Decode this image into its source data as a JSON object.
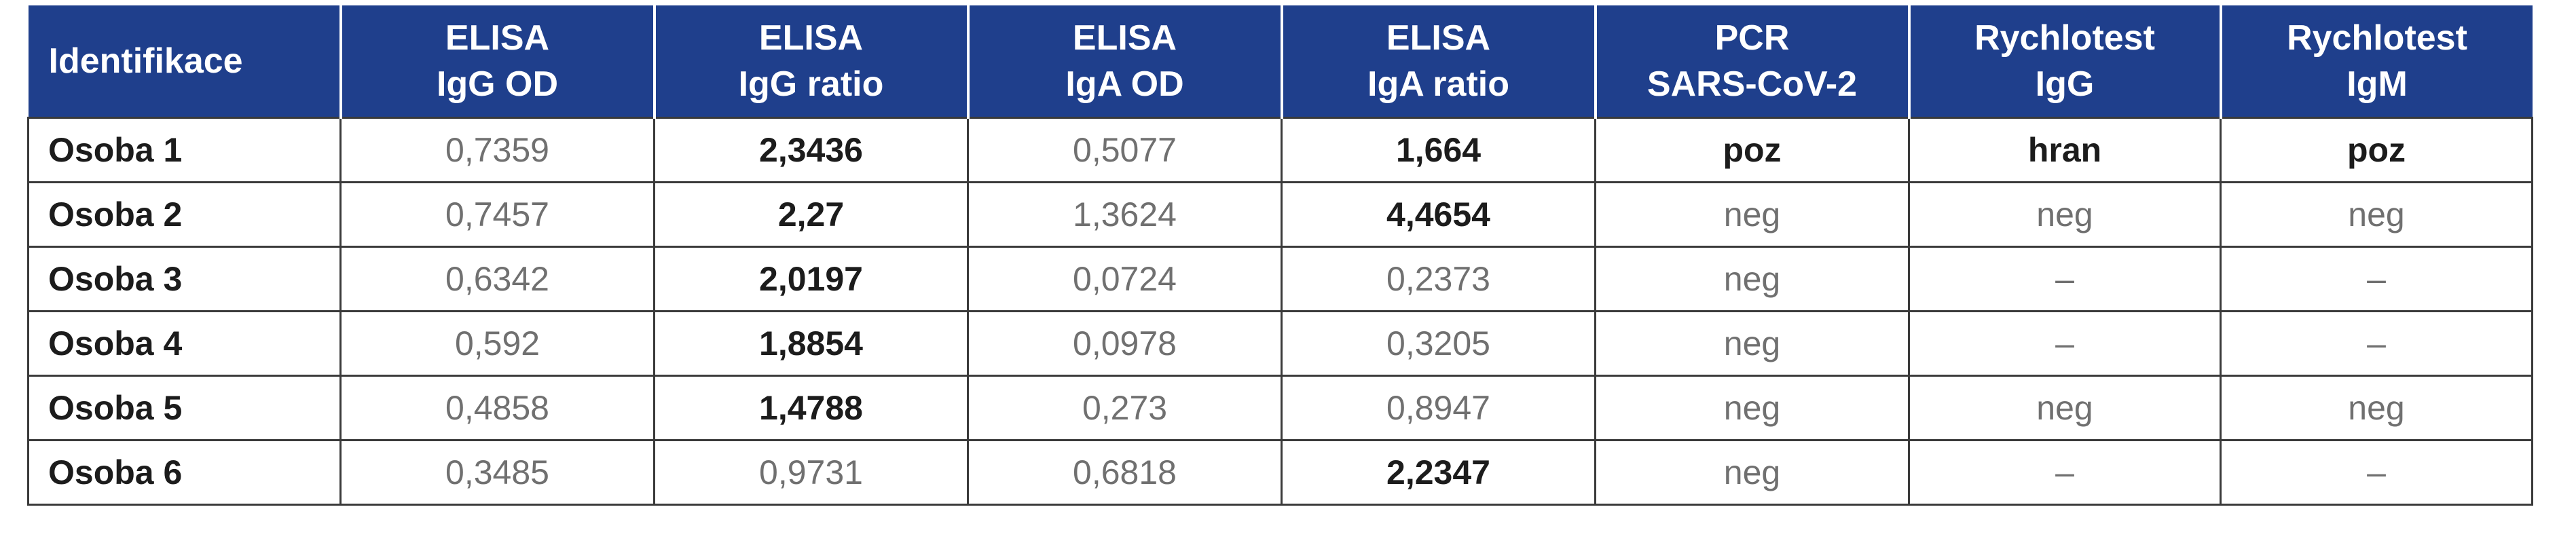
{
  "table": {
    "headers": [
      {
        "line1": "Identifikace",
        "line2": ""
      },
      {
        "line1": "ELISA",
        "line2": "IgG OD"
      },
      {
        "line1": "ELISA",
        "line2": "IgG ratio"
      },
      {
        "line1": "ELISA",
        "line2": "IgA OD"
      },
      {
        "line1": "ELISA",
        "line2": "IgA ratio"
      },
      {
        "line1": "PCR",
        "line2": "SARS-CoV-2"
      },
      {
        "line1": "Rychlotest",
        "line2": "IgG"
      },
      {
        "line1": "Rychlotest",
        "line2": "IgM"
      }
    ],
    "rows": [
      {
        "cells": [
          {
            "text": "Osoba 1",
            "bold": true
          },
          {
            "text": "0,7359",
            "bold": false
          },
          {
            "text": "2,3436",
            "bold": true
          },
          {
            "text": "0,5077",
            "bold": false
          },
          {
            "text": "1,664",
            "bold": true
          },
          {
            "text": "poz",
            "bold": true
          },
          {
            "text": "hran",
            "bold": true
          },
          {
            "text": "poz",
            "bold": true
          }
        ]
      },
      {
        "cells": [
          {
            "text": "Osoba 2",
            "bold": true
          },
          {
            "text": "0,7457",
            "bold": false
          },
          {
            "text": "2,27",
            "bold": true
          },
          {
            "text": "1,3624",
            "bold": false
          },
          {
            "text": "4,4654",
            "bold": true
          },
          {
            "text": "neg",
            "bold": false
          },
          {
            "text": "neg",
            "bold": false
          },
          {
            "text": "neg",
            "bold": false
          }
        ]
      },
      {
        "cells": [
          {
            "text": "Osoba 3",
            "bold": true
          },
          {
            "text": "0,6342",
            "bold": false
          },
          {
            "text": "2,0197",
            "bold": true
          },
          {
            "text": "0,0724",
            "bold": false
          },
          {
            "text": "0,2373",
            "bold": false
          },
          {
            "text": "neg",
            "bold": false
          },
          {
            "text": "–",
            "bold": false
          },
          {
            "text": "–",
            "bold": false
          }
        ]
      },
      {
        "cells": [
          {
            "text": "Osoba 4",
            "bold": true
          },
          {
            "text": "0,592",
            "bold": false
          },
          {
            "text": "1,8854",
            "bold": true
          },
          {
            "text": "0,0978",
            "bold": false
          },
          {
            "text": "0,3205",
            "bold": false
          },
          {
            "text": "neg",
            "bold": false
          },
          {
            "text": "–",
            "bold": false
          },
          {
            "text": "–",
            "bold": false
          }
        ]
      },
      {
        "cells": [
          {
            "text": "Osoba 5",
            "bold": true
          },
          {
            "text": "0,4858",
            "bold": false
          },
          {
            "text": "1,4788",
            "bold": true
          },
          {
            "text": "0,273",
            "bold": false
          },
          {
            "text": "0,8947",
            "bold": false
          },
          {
            "text": "neg",
            "bold": false
          },
          {
            "text": "neg",
            "bold": false
          },
          {
            "text": "neg",
            "bold": false
          }
        ]
      },
      {
        "cells": [
          {
            "text": "Osoba 6",
            "bold": true
          },
          {
            "text": "0,3485",
            "bold": false
          },
          {
            "text": "0,9731",
            "bold": false
          },
          {
            "text": "0,6818",
            "bold": false
          },
          {
            "text": "2,2347",
            "bold": true
          },
          {
            "text": "neg",
            "bold": false
          },
          {
            "text": "–",
            "bold": false
          },
          {
            "text": "–",
            "bold": false
          }
        ]
      }
    ]
  }
}
